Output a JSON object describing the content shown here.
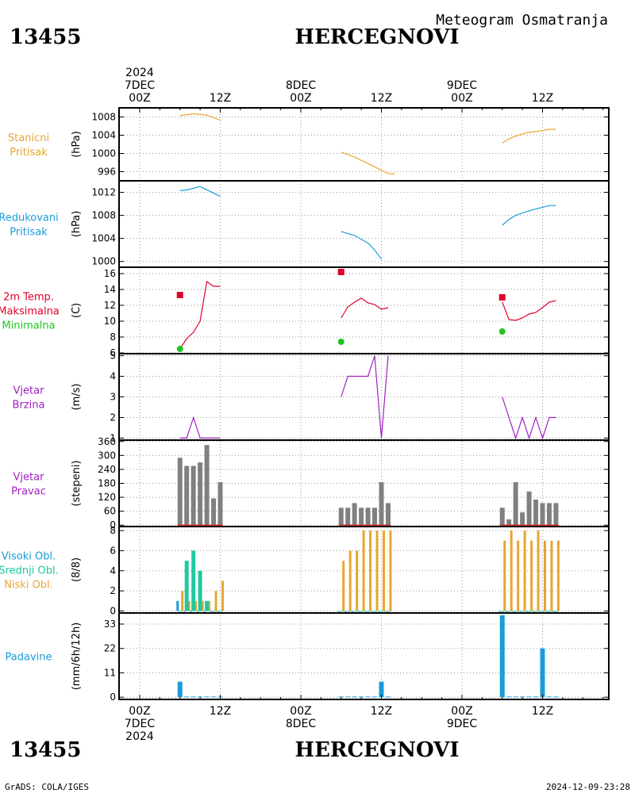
{
  "header": {
    "station_id": "13455",
    "station_name": "HERCEGNOVI",
    "subtitle": "Meteogram Osmatranja"
  },
  "footer": {
    "grads": "GrADS: COLA/IGES",
    "timestamp": "2024-12-09-23:28"
  },
  "time_axis": {
    "hours_per_day": 24,
    "days": 3,
    "top_labels": [
      {
        "h": 0,
        "lines": [
          "2024",
          "7DEC",
          "00Z"
        ]
      },
      {
        "h": 12,
        "lines": [
          "12Z"
        ]
      },
      {
        "h": 24,
        "lines": [
          "8DEC",
          "00Z"
        ]
      },
      {
        "h": 36,
        "lines": [
          "12Z"
        ]
      },
      {
        "h": 48,
        "lines": [
          "9DEC",
          "00Z"
        ]
      },
      {
        "h": 60,
        "lines": [
          "12Z"
        ]
      }
    ],
    "bottom_labels": [
      {
        "h": 0,
        "lines": [
          "00Z",
          "7DEC",
          "2024"
        ]
      },
      {
        "h": 12,
        "lines": [
          "12Z"
        ]
      },
      {
        "h": 24,
        "lines": [
          "00Z",
          "8DEC"
        ]
      },
      {
        "h": 36,
        "lines": [
          "12Z"
        ]
      },
      {
        "h": 48,
        "lines": [
          "00Z",
          "9DEC"
        ]
      },
      {
        "h": 60,
        "lines": [
          "12Z"
        ]
      }
    ]
  },
  "colors": {
    "pressure": "#e8a630",
    "reduced": "#1a9cd8",
    "tmax": "#e0002a",
    "tmin": "#22c422",
    "wind": "#a020c0",
    "high_cloud": "#1a9cd8",
    "mid_cloud": "#20c8a0",
    "low_cloud": "#e8a630",
    "precip": "#1a9cd8",
    "bars": "#808080",
    "wind_dir_base": "#d03030"
  },
  "chart_data": [
    {
      "type": "line",
      "panel": "station_pressure",
      "label_lines": [
        "Stanicni",
        "Pritisak"
      ],
      "ylabel": "(hPa)",
      "yticks": [
        "1008",
        "1004",
        "1000",
        "996"
      ],
      "ylim": [
        994,
        1010
      ],
      "series": [
        {
          "x": [
            6,
            8,
            10,
            12
          ],
          "values": [
            1008.3,
            1008.7,
            1008.4,
            1007.3
          ]
        },
        {
          "x": [
            30,
            32,
            34,
            36,
            37,
            38
          ],
          "values": [
            1000.3,
            999.2,
            997.8,
            996.3,
            995.6,
            995.5
          ]
        },
        {
          "x": [
            54,
            55,
            56,
            57,
            58,
            59,
            60,
            61,
            62
          ],
          "values": [
            1002.3,
            1003.2,
            1003.8,
            1004.3,
            1004.6,
            1004.8,
            1005.0,
            1005.3,
            1005.3
          ]
        }
      ]
    },
    {
      "type": "line",
      "panel": "reduced_pressure",
      "label_lines": [
        "Redukovani",
        "Pritisak"
      ],
      "ylabel": "(hPa)",
      "yticks": [
        "1012",
        "1008",
        "1004",
        "1000"
      ],
      "ylim": [
        999,
        1014
      ],
      "series": [
        {
          "x": [
            6,
            7,
            9,
            12
          ],
          "values": [
            1012.3,
            1012.4,
            1013.0,
            1011.3
          ]
        },
        {
          "x": [
            30,
            32,
            34,
            35,
            36
          ],
          "values": [
            1005.2,
            1004.5,
            1003.2,
            1002.0,
            1000.4
          ]
        },
        {
          "x": [
            54,
            55,
            56,
            57,
            58,
            59,
            60,
            61,
            62
          ],
          "values": [
            1006.3,
            1007.3,
            1008.0,
            1008.4,
            1008.8,
            1009.1,
            1009.4,
            1009.7,
            1009.7
          ]
        }
      ]
    },
    {
      "type": "line",
      "panel": "temperature",
      "label_lines": [
        "2m Temp.",
        "Maksimalna",
        "Minimalna"
      ],
      "ylabel": "(C)",
      "yticks": [
        "16",
        "14",
        "12",
        "10",
        "8",
        "6"
      ],
      "ylim": [
        5.9,
        16.8
      ],
      "series": [
        {
          "x": [
            6,
            7,
            8,
            9,
            10,
            11,
            12
          ],
          "values": [
            6.5,
            7.8,
            8.6,
            10.0,
            15.0,
            14.4,
            14.4
          ]
        },
        {
          "x": [
            30,
            31,
            32,
            33,
            34,
            35,
            36,
            37
          ],
          "values": [
            10.4,
            11.8,
            12.4,
            12.9,
            12.3,
            12.1,
            11.5,
            11.7
          ]
        },
        {
          "x": [
            54,
            55,
            56,
            57,
            58,
            59,
            60,
            61,
            62
          ],
          "values": [
            12.4,
            10.2,
            10.1,
            10.4,
            10.9,
            11.1,
            11.7,
            12.4,
            12.6
          ]
        }
      ],
      "tmax_points": [
        {
          "x": 6,
          "value": 13.3
        },
        {
          "x": 30,
          "value": 16.2
        },
        {
          "x": 54,
          "value": 13.0
        }
      ],
      "tmin_points": [
        {
          "x": 6,
          "value": 6.5
        },
        {
          "x": 30,
          "value": 7.4
        },
        {
          "x": 54,
          "value": 8.7
        }
      ]
    },
    {
      "type": "line",
      "panel": "wind_speed",
      "label_lines": [
        "Vjetar",
        "Brzina"
      ],
      "ylabel": "(m/s)",
      "yticks": [
        "5",
        "4",
        "3",
        "2",
        "1"
      ],
      "ylim": [
        0.9,
        5.1
      ],
      "series": [
        {
          "x": [
            6,
            7,
            8,
            9,
            10,
            11,
            12
          ],
          "values": [
            1,
            1,
            2,
            1,
            1,
            1,
            1
          ]
        },
        {
          "x": [
            30,
            31,
            32,
            33,
            34,
            35,
            36,
            37
          ],
          "values": [
            3,
            4,
            4,
            4,
            4,
            5,
            1,
            5
          ]
        },
        {
          "x": [
            54,
            55,
            56,
            57,
            58,
            59,
            60,
            61,
            62
          ],
          "values": [
            3,
            2,
            1,
            2,
            1,
            2,
            1,
            2,
            2
          ]
        }
      ]
    },
    {
      "type": "bar",
      "panel": "wind_direction",
      "label_lines": [
        "Vjetar",
        "Pravac"
      ],
      "ylabel": "(stepeni)",
      "yticks": [
        "360",
        "300",
        "240",
        "180",
        "120",
        "60",
        "0"
      ],
      "ylim": [
        -6,
        366
      ],
      "x": [
        6,
        7,
        8,
        9,
        10,
        11,
        12,
        30,
        31,
        32,
        33,
        34,
        35,
        36,
        37,
        54,
        55,
        56,
        57,
        58,
        59,
        60,
        61,
        62
      ],
      "values": [
        290,
        255,
        255,
        270,
        345,
        115,
        185,
        75,
        75,
        95,
        75,
        75,
        75,
        185,
        95,
        75,
        25,
        185,
        55,
        145,
        110,
        95,
        95,
        95
      ]
    },
    {
      "type": "bar",
      "panel": "cloud_cover",
      "label_lines": [
        "Visoki Obl.",
        "Srednji Obl.",
        "Niski Obl."
      ],
      "ylabel": "(8/8)",
      "yticks": [
        "8",
        "6",
        "4",
        "2",
        "0"
      ],
      "ylim": [
        -0.2,
        8.4
      ],
      "x": [
        6,
        7,
        8,
        9,
        10,
        11,
        12,
        30,
        31,
        32,
        33,
        34,
        35,
        36,
        37,
        54,
        55,
        56,
        57,
        58,
        59,
        60,
        61,
        62
      ],
      "series": [
        {
          "name": "Visoki Obl.",
          "values": [
            1,
            0,
            0,
            0,
            0,
            0,
            0,
            0,
            0,
            0,
            0,
            0,
            0,
            0,
            0,
            0,
            0,
            0,
            0,
            0,
            0,
            0,
            0,
            0
          ]
        },
        {
          "name": "Srednji Obl.",
          "values": [
            0,
            5,
            6,
            4,
            1,
            0,
            0,
            0,
            0,
            0,
            0,
            0,
            0,
            0,
            0,
            0,
            0,
            0,
            0,
            0,
            0,
            0,
            0,
            0
          ]
        },
        {
          "name": "Niski Obl.",
          "values": [
            2,
            1,
            1,
            1,
            1,
            2,
            3,
            5,
            6,
            6,
            8,
            8,
            8,
            8,
            8,
            7,
            8,
            7,
            8,
            7,
            8,
            7,
            7,
            7
          ]
        }
      ]
    },
    {
      "type": "bar",
      "panel": "precipitation",
      "label_lines": [
        "Padavine"
      ],
      "ylabel": "(mm/6h/12h)",
      "yticks": [
        "33",
        "22",
        "11",
        "0"
      ],
      "ylim": [
        -1,
        38
      ],
      "x": [
        6,
        7,
        8,
        9,
        10,
        11,
        12,
        30,
        31,
        32,
        33,
        34,
        35,
        36,
        37,
        54,
        55,
        56,
        57,
        58,
        59,
        60,
        61,
        62
      ],
      "values": [
        7,
        0.3,
        0.3,
        0.3,
        0.3,
        0.3,
        0.3,
        0.3,
        0.3,
        0.3,
        0.3,
        0.3,
        0.3,
        7,
        0.3,
        37,
        0.3,
        0.3,
        0.3,
        0.3,
        0.3,
        22,
        0.3,
        0.3
      ]
    }
  ]
}
